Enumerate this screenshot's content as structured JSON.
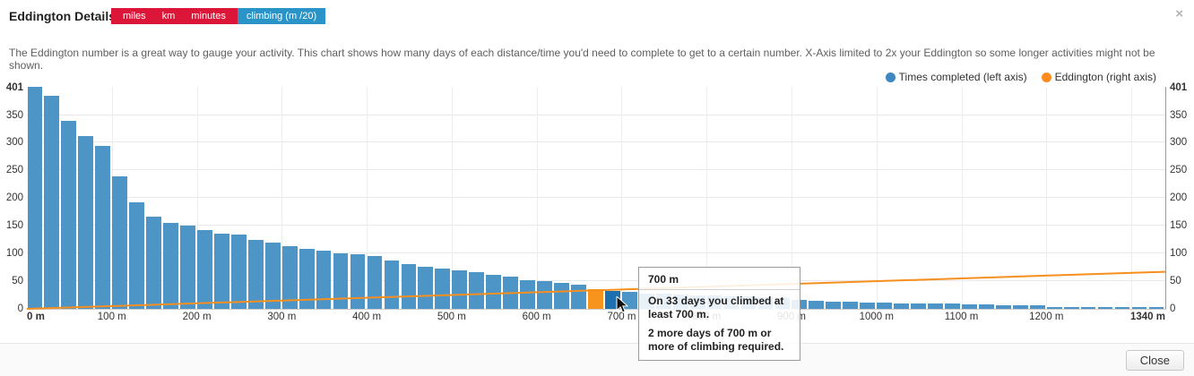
{
  "header": {
    "title": "Eddington Details",
    "close_icon": "×"
  },
  "tabs": {
    "inactive": [
      "miles",
      "km",
      "minutes"
    ],
    "active": "climbing (m /20)",
    "inactive_color": "#dc1638",
    "active_color": "#2a94c8"
  },
  "description": "The Eddington number is a great way to gauge your activity. This chart shows how many days of each distance/time you'd need to complete to get to a certain number. X-Axis limited to 2x your Eddington so some longer activities might not be shown.",
  "legend": [
    {
      "label": "Times completed (left axis)",
      "color": "#3d87c2"
    },
    {
      "label": "Eddington (right axis)",
      "color": "#ff8c1a"
    }
  ],
  "chart_data": {
    "type": "bar",
    "title": "Eddington Details — climbing (m /20)",
    "xlabel": "climbing (m)",
    "ylabel_left": "Times completed",
    "ylabel_right": "Eddington",
    "x_start_m": 20,
    "x_step_m": 20,
    "x_max_m": 1340,
    "y_axis_max": 401,
    "y_ticks": [
      0,
      50,
      100,
      150,
      200,
      250,
      300,
      350
    ],
    "y_max_label": "401",
    "values": [
      401,
      385,
      340,
      312,
      295,
      240,
      192,
      167,
      155,
      150,
      143,
      136,
      134,
      124,
      120,
      113,
      108,
      105,
      101,
      98,
      96,
      87,
      81,
      76,
      72,
      69,
      66,
      62,
      58,
      52,
      50,
      47,
      43,
      35,
      33,
      30,
      28,
      27,
      26,
      25,
      24,
      23,
      22,
      21,
      20,
      16,
      14,
      13,
      13,
      12,
      11,
      10,
      10,
      9,
      9,
      8,
      8,
      7,
      7,
      6,
      4,
      3,
      3,
      2,
      2,
      2,
      1
    ],
    "eddington_index": 33,
    "hover_index": 34,
    "eddington_line": {
      "x_m": [
        0,
        1340
      ],
      "y_right_axis": [
        0,
        67
      ]
    },
    "x_ticks": [
      {
        "m": 0,
        "label": "0 m",
        "bold": true
      },
      {
        "m": 100,
        "label": "100 m"
      },
      {
        "m": 200,
        "label": "200 m"
      },
      {
        "m": 300,
        "label": "300 m"
      },
      {
        "m": 400,
        "label": "400 m"
      },
      {
        "m": 500,
        "label": "500 m"
      },
      {
        "m": 600,
        "label": "600 m"
      },
      {
        "m": 700,
        "label": "700 m"
      },
      {
        "m": 800,
        "label": "800 m"
      },
      {
        "m": 900,
        "label": "900 m"
      },
      {
        "m": 1000,
        "label": "1000 m"
      },
      {
        "m": 1100,
        "label": "1100 m"
      },
      {
        "m": 1200,
        "label": "1200 m"
      },
      {
        "m": 1340,
        "label": "1340 m",
        "bold": true
      }
    ],
    "colors": {
      "bar": "#4d94c7",
      "bar_highlight_hover": "#1e6fae",
      "bar_eddington": "#f7941e",
      "line": "#f78f1e"
    }
  },
  "tooltip": {
    "title": "700 m",
    "line1": "On 33 days you climbed at least 700 m.",
    "line2": "2 more days of 700 m or more of climbing required."
  },
  "footer": {
    "close_label": "Close"
  }
}
